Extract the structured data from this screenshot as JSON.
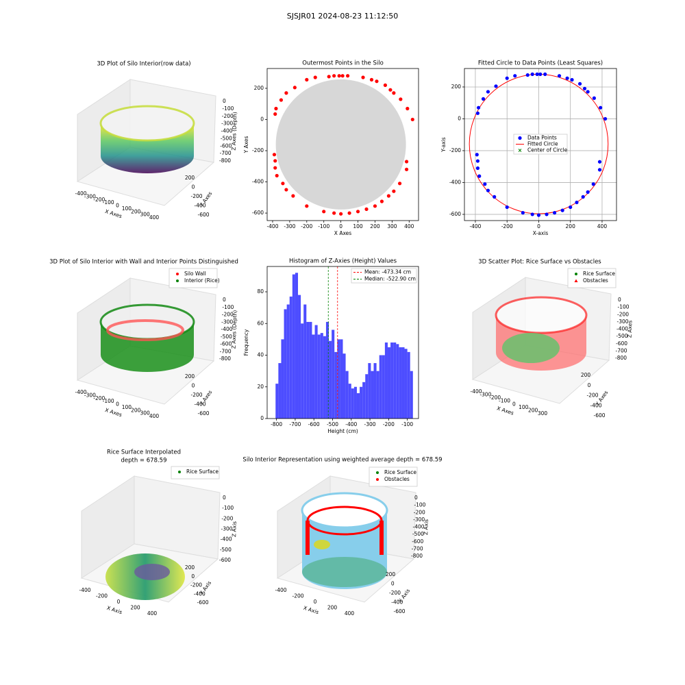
{
  "title": "SJSJR01 2024-08-23 11:12:50",
  "chart_data": [
    {
      "type": "scatter3d",
      "title": "3D Plot of Silo Interior(row data)",
      "xlabel": "X Axes",
      "ylabel": "Y Axes",
      "zlabel": "Z Axes (Depth)",
      "xticks": [
        -400,
        -300,
        -200,
        -100,
        0,
        100,
        200,
        300,
        400
      ],
      "yticks": [
        200,
        0,
        -200,
        -400,
        -600
      ],
      "zticks": [
        0,
        -100,
        -200,
        -300,
        -400,
        -500,
        -600,
        -700,
        -800
      ]
    },
    {
      "type": "scatter",
      "title": "Outermost Points in the Silo",
      "xlabel": "X Axes",
      "ylabel": "Y Axes",
      "color": "red",
      "x": [
        -385,
        -380,
        -350,
        -320,
        -270,
        -200,
        -150,
        -70,
        -40,
        -10,
        10,
        40,
        130,
        180,
        210,
        260,
        290,
        310,
        350,
        390,
        420,
        385,
        385,
        345,
        310,
        280,
        240,
        200,
        150,
        100,
        50,
        0,
        -40,
        -100,
        -200,
        -280,
        -320,
        -340,
        -375,
        -385,
        -385,
        -390
      ],
      "y": [
        35,
        70,
        125,
        170,
        205,
        255,
        270,
        275,
        280,
        280,
        280,
        280,
        270,
        255,
        245,
        220,
        190,
        170,
        130,
        70,
        0,
        -270,
        -320,
        -410,
        -460,
        -490,
        -525,
        -555,
        -575,
        -590,
        -600,
        -605,
        -600,
        -590,
        -555,
        -490,
        -450,
        -410,
        -360,
        -310,
        -265,
        -225
      ],
      "xlim": [
        -432,
        455
      ],
      "ylim": [
        -648,
        327
      ],
      "xticks": [
        -400,
        -300,
        -200,
        -100,
        0,
        100,
        200,
        300,
        400
      ],
      "yticks": [
        -600,
        -400,
        -200,
        0,
        200
      ],
      "grid": false
    },
    {
      "type": "scatter",
      "title": "Fitted Circle to Data Points (Least Squares)",
      "xlabel": "X-axis",
      "ylabel": "Y-axis",
      "series": [
        {
          "name": "Data Points",
          "color": "blue",
          "x": [
            -385,
            -380,
            -350,
            -320,
            -270,
            -200,
            -150,
            -70,
            -40,
            -10,
            10,
            40,
            130,
            180,
            210,
            260,
            290,
            310,
            350,
            390,
            420,
            385,
            385,
            345,
            310,
            280,
            240,
            200,
            150,
            100,
            50,
            0,
            -40,
            -100,
            -200,
            -280,
            -320,
            -340,
            -375,
            -385,
            -385,
            -390
          ],
          "y": [
            35,
            70,
            125,
            170,
            205,
            255,
            270,
            275,
            280,
            280,
            280,
            280,
            270,
            255,
            245,
            220,
            190,
            170,
            130,
            70,
            0,
            -270,
            -320,
            -410,
            -460,
            -490,
            -525,
            -555,
            -575,
            -590,
            -600,
            -605,
            -600,
            -590,
            -555,
            -490,
            -450,
            -410,
            -360,
            -310,
            -265,
            -225
          ]
        }
      ],
      "circle": {
        "name": "Fitted Circle",
        "color": "red",
        "center": [
          0,
          -158
        ],
        "radius": 438
      },
      "center_marker": {
        "name": "Center of Circle",
        "color": "green"
      },
      "xlim": [
        -469,
        491
      ],
      "ylim": [
        -639,
        316
      ],
      "xticks": [
        -400,
        -200,
        0,
        200,
        400
      ],
      "yticks": [
        -600,
        -400,
        -200,
        0,
        200
      ],
      "grid": true
    },
    {
      "type": "scatter3d",
      "title": "3D Plot of Silo Interior with Wall and Interior Points Distinguished",
      "xlabel": "X Axes",
      "ylabel": "Y Axes",
      "zlabel": "Z Axes (Depth)",
      "series": [
        {
          "name": "Silo Wall",
          "color": "red",
          "marker": "o"
        },
        {
          "name": "Interior (Rice)",
          "color": "green",
          "marker": "o"
        }
      ],
      "xticks": [
        -400,
        -300,
        -200,
        -100,
        0,
        100,
        200,
        300,
        400
      ],
      "yticks": [
        200,
        0,
        -200,
        -400,
        -600
      ],
      "zticks": [
        0,
        -100,
        -200,
        -300,
        -400,
        -500,
        -600,
        -700,
        -800
      ]
    },
    {
      "type": "histogram",
      "title": "Histogram of Z-Axies (Height) Values",
      "xlabel": "Height (cm)",
      "ylabel": "Frequency",
      "color": "#4d4dff",
      "bins": [
        -805,
        -790,
        -775,
        -760,
        -745,
        -730,
        -715,
        -700,
        -685,
        -670,
        -655,
        -640,
        -625,
        -610,
        -595,
        -580,
        -565,
        -550,
        -535,
        -520,
        -505,
        -490,
        -475,
        -460,
        -445,
        -430,
        -415,
        -400,
        -385,
        -370,
        -355,
        -340,
        -325,
        -310,
        -295,
        -280,
        -265,
        -250,
        -235,
        -220,
        -205,
        -190,
        -175,
        -160,
        -145,
        -130,
        -115,
        -100,
        -85,
        -70
      ],
      "values": [
        22,
        35,
        50,
        69,
        72,
        77,
        91,
        92,
        78,
        60,
        72,
        61,
        61,
        53,
        59,
        53,
        54,
        52,
        61,
        49,
        56,
        42,
        50,
        50,
        41,
        30,
        22,
        19,
        20,
        16,
        20,
        23,
        28,
        35,
        30,
        35,
        30,
        40,
        40,
        48,
        45,
        48,
        48,
        47,
        45,
        45,
        44,
        42,
        30
      ],
      "lines": [
        {
          "name": "Mean: -473.34 cm",
          "value": -473.34,
          "color": "red"
        },
        {
          "name": "Median: -522.90 cm",
          "value": -522.9,
          "color": "green"
        }
      ],
      "xlim": [
        -850,
        -40
      ],
      "ylim": [
        0,
        96
      ],
      "xticks": [
        -800,
        -700,
        -600,
        -500,
        -400,
        -300,
        -200,
        -100
      ],
      "yticks": [
        0,
        20,
        40,
        60,
        80
      ],
      "grid": false
    },
    {
      "type": "scatter3d",
      "title": "3D Scatter Plot: Rice Surface vs Obstacles",
      "xlabel": "X Axes",
      "ylabel": "Y Axes",
      "zlabel": "Z Axes",
      "series": [
        {
          "name": "Rice Surface",
          "color": "green",
          "marker": "o"
        },
        {
          "name": "Obstacles",
          "color": "red",
          "marker": "^"
        }
      ],
      "xticks": [
        -400,
        -300,
        -200,
        -100,
        0,
        100,
        200,
        300
      ],
      "yticks": [
        200,
        0,
        -200,
        -400,
        -600
      ],
      "zticks": [
        0,
        -100,
        -200,
        -300,
        -400,
        -500,
        -600,
        -700,
        -800
      ]
    },
    {
      "type": "surface3d",
      "title": "Rice Surface Interpolated",
      "subtitle": "depth = 678.59",
      "xlabel": "X Axis",
      "ylabel": "Y Axis",
      "zlabel": "Z Axis",
      "series": [
        {
          "name": "Rice Surface",
          "color": "green",
          "marker": "o"
        }
      ],
      "xticks": [
        -400,
        -200,
        0,
        200,
        400
      ],
      "yticks": [
        200,
        0,
        -200,
        -400,
        -600
      ],
      "zticks": [
        0,
        -100,
        -200,
        -300,
        -400,
        -500,
        -600
      ]
    },
    {
      "type": "surface3d",
      "title": "Silo Interior Representation using weighted average depth = 678.59",
      "xlabel": "X Axis",
      "ylabel": "Y Axis",
      "zlabel": "Z Axis",
      "series": [
        {
          "name": "Rice Surface",
          "color": "green",
          "marker": "o"
        },
        {
          "name": "Obstacles",
          "color": "red",
          "marker": "o"
        }
      ],
      "xticks": [
        -400,
        -200,
        0,
        200,
        400
      ],
      "yticks": [
        200,
        0,
        -200,
        -400,
        -600
      ],
      "zticks": [
        0,
        -100,
        -200,
        -300,
        -400,
        -500,
        -600,
        -700,
        -800
      ]
    }
  ]
}
